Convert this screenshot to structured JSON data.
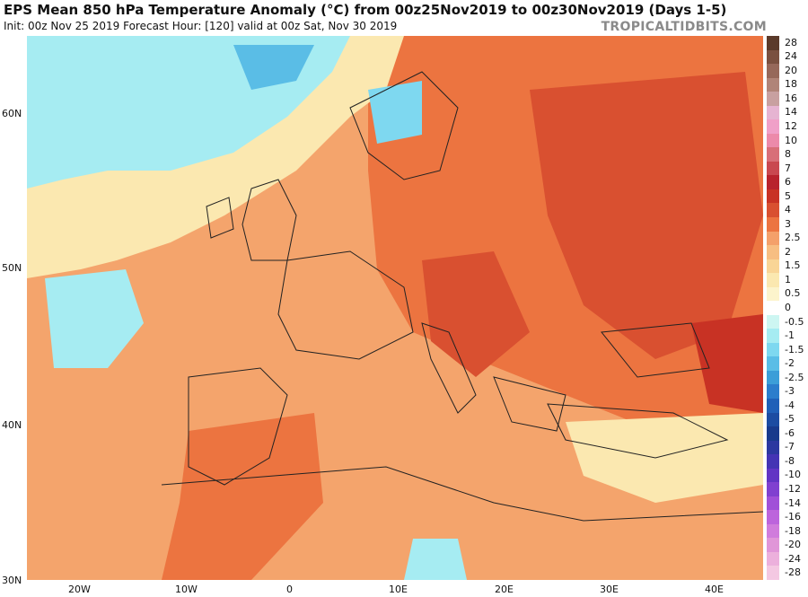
{
  "header": {
    "title": "EPS Mean 850 hPa Temperature Anomaly (°C) from 00z25Nov2019 to 00z30Nov2019 (Days 1-5)",
    "subtitle": "Init: 00z Nov 25 2019   Forecast Hour: [120]   valid at 00z Sat, Nov 30 2019",
    "credit": "TROPICALTIDBITS.COM"
  },
  "map": {
    "lat_labels": [
      "60N",
      "50N",
      "40N",
      "30N"
    ],
    "lon_labels": [
      "20W",
      "10W",
      "0",
      "10E",
      "20E",
      "30E",
      "40E"
    ]
  },
  "legend": {
    "levels": [
      "28",
      "24",
      "20",
      "18",
      "16",
      "14",
      "12",
      "10",
      "8",
      "7",
      "6",
      "5",
      "4",
      "3",
      "2.5",
      "2",
      "1.5",
      "1",
      "0.5",
      "0",
      "-0.5",
      "-1",
      "-1.5",
      "-2",
      "-2.5",
      "-3",
      "-4",
      "-5",
      "-6",
      "-7",
      "-8",
      "-10",
      "-12",
      "-14",
      "-16",
      "-18",
      "-20",
      "-24",
      "-28"
    ],
    "colors": [
      "#5b3a2a",
      "#7a5040",
      "#96685a",
      "#b08478",
      "#c8a0a0",
      "#e6b4d2",
      "#f0a0c8",
      "#ec8aaa",
      "#d86f78",
      "#c94850",
      "#b8232d",
      "#c83224",
      "#d95030",
      "#ec7440",
      "#f4a06a",
      "#f7be82",
      "#f9d596",
      "#fbe8b0",
      "#fcf4cc",
      "#ffffff",
      "#cdf6f2",
      "#a6ecf2",
      "#7ed8f0",
      "#5abde6",
      "#3c9ed8",
      "#2c7dcc",
      "#2060b8",
      "#1c4ca2",
      "#183a8c",
      "#2c38a0",
      "#4434b4",
      "#6234c4",
      "#8040d0",
      "#a050d8",
      "#bc64dc",
      "#d07cdc",
      "#e096d8",
      "#ecb0dc",
      "#f4c8e2"
    ]
  }
}
